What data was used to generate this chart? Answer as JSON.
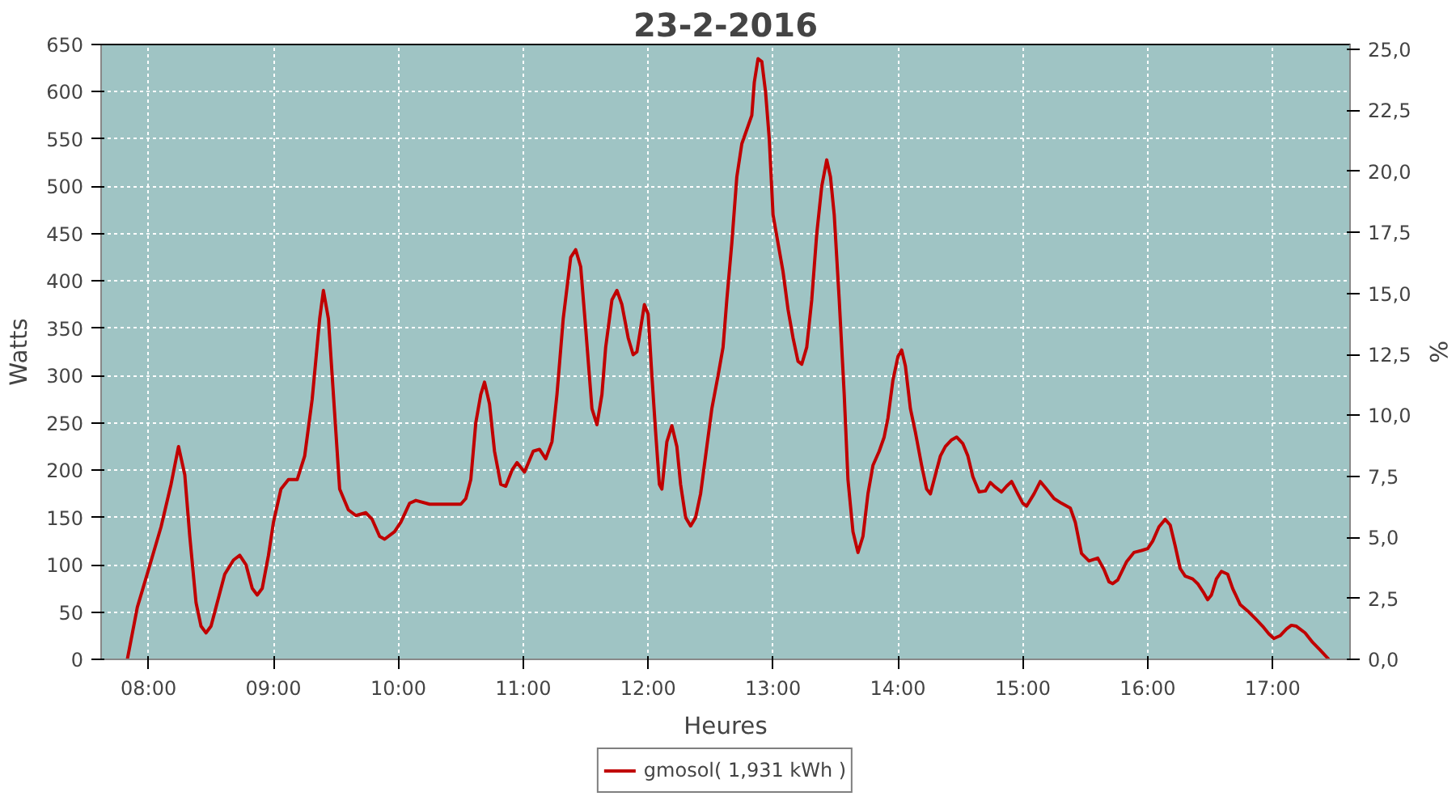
{
  "chart_data": {
    "type": "line",
    "title": "23-2-2016",
    "xlabel": "Heures",
    "ylabel": "Watts",
    "y2label": "%",
    "xlim": [
      7.62,
      17.62
    ],
    "xticks": [
      {
        "value": 8,
        "label": "08:00"
      },
      {
        "value": 9,
        "label": "09:00"
      },
      {
        "value": 10,
        "label": "10:00"
      },
      {
        "value": 11,
        "label": "11:00"
      },
      {
        "value": 12,
        "label": "12:00"
      },
      {
        "value": 13,
        "label": "13:00"
      },
      {
        "value": 14,
        "label": "14:00"
      },
      {
        "value": 15,
        "label": "15:00"
      },
      {
        "value": 16,
        "label": "16:00"
      },
      {
        "value": 17,
        "label": "17:00"
      }
    ],
    "ylim": [
      0,
      650
    ],
    "yticks": [
      0,
      50,
      100,
      150,
      200,
      250,
      300,
      350,
      400,
      450,
      500,
      550,
      600,
      650
    ],
    "y2lim": [
      0,
      25.2
    ],
    "y2ticks": [
      {
        "value": 0,
        "label": "0,0"
      },
      {
        "value": 2.5,
        "label": "2,5"
      },
      {
        "value": 5,
        "label": "5,0"
      },
      {
        "value": 7.5,
        "label": "7,5"
      },
      {
        "value": 10,
        "label": "10,0"
      },
      {
        "value": 12.5,
        "label": "12,5"
      },
      {
        "value": 15,
        "label": "15,0"
      },
      {
        "value": 17.5,
        "label": "17,5"
      },
      {
        "value": 20,
        "label": "20,0"
      },
      {
        "value": 22.5,
        "label": "22,5"
      },
      {
        "value": 25,
        "label": "25,0"
      }
    ],
    "grid": true,
    "legend": "bottom",
    "line_style": "solid",
    "x": [
      7.83,
      7.91,
      8.0,
      8.1,
      8.18,
      8.24,
      8.29,
      8.33,
      8.38,
      8.42,
      8.46,
      8.5,
      8.55,
      8.61,
      8.68,
      8.73,
      8.78,
      8.83,
      8.87,
      8.91,
      8.96,
      9.0,
      9.06,
      9.12,
      9.19,
      9.25,
      9.31,
      9.37,
      9.4,
      9.44,
      9.49,
      9.53,
      9.6,
      9.66,
      9.74,
      9.79,
      9.85,
      9.89,
      9.97,
      10.02,
      10.09,
      10.14,
      10.25,
      10.4,
      10.5,
      10.54,
      10.58,
      10.62,
      10.66,
      10.69,
      10.73,
      10.77,
      10.82,
      10.86,
      10.91,
      10.95,
      11.01,
      11.08,
      11.13,
      11.18,
      11.23,
      11.27,
      11.32,
      11.38,
      11.42,
      11.46,
      11.5,
      11.55,
      11.59,
      11.63,
      11.66,
      11.71,
      11.75,
      11.79,
      11.84,
      11.88,
      11.91,
      11.94,
      11.97,
      12.0,
      12.03,
      12.06,
      12.09,
      12.11,
      12.15,
      12.19,
      12.23,
      12.26,
      12.3,
      12.34,
      12.38,
      12.42,
      12.46,
      12.51,
      12.56,
      12.6,
      12.63,
      12.67,
      12.71,
      12.75,
      12.79,
      12.83,
      12.85,
      12.88,
      12.91,
      12.94,
      12.97,
      13.0,
      13.04,
      13.08,
      13.12,
      13.16,
      13.2,
      13.23,
      13.27,
      13.31,
      13.35,
      13.39,
      13.43,
      13.46,
      13.49,
      13.53,
      13.57,
      13.6,
      13.64,
      13.68,
      13.72,
      13.76,
      13.8,
      13.85,
      13.89,
      13.92,
      13.96,
      14.0,
      14.03,
      14.06,
      14.1,
      14.14,
      14.19,
      14.23,
      14.26,
      14.29,
      14.34,
      14.38,
      14.43,
      14.47,
      14.52,
      14.56,
      14.6,
      14.65,
      14.7,
      14.74,
      14.78,
      14.83,
      14.87,
      14.91,
      14.96,
      15.0,
      15.03,
      15.09,
      15.14,
      15.19,
      15.25,
      15.31,
      15.38,
      15.42,
      15.47,
      15.53,
      15.6,
      15.65,
      15.69,
      15.72,
      15.76,
      15.83,
      15.89,
      15.95,
      16.0,
      16.04,
      16.09,
      16.14,
      16.18,
      16.22,
      16.26,
      16.3,
      16.36,
      16.4,
      16.45,
      16.48,
      16.51,
      16.55,
      16.59,
      16.64,
      16.68,
      16.74,
      16.81,
      16.87,
      16.92,
      16.97,
      17.01,
      17.06,
      17.11,
      17.15,
      17.19,
      17.26,
      17.32,
      17.38,
      17.45
    ],
    "series": [
      {
        "name": "gmosol( 1,931 kWh )",
        "color": "#c00000",
        "values": [
          0,
          55,
          95,
          140,
          185,
          225,
          195,
          130,
          60,
          35,
          28,
          35,
          60,
          90,
          105,
          110,
          100,
          75,
          68,
          75,
          110,
          145,
          180,
          190,
          190,
          215,
          275,
          360,
          390,
          360,
          260,
          180,
          158,
          152,
          155,
          148,
          130,
          127,
          135,
          145,
          165,
          168,
          164,
          164,
          164,
          170,
          190,
          250,
          280,
          293,
          270,
          220,
          185,
          183,
          200,
          208,
          198,
          220,
          222,
          212,
          230,
          280,
          360,
          425,
          433,
          415,
          350,
          265,
          248,
          280,
          330,
          380,
          390,
          375,
          340,
          322,
          325,
          350,
          375,
          365,
          300,
          240,
          185,
          180,
          230,
          247,
          225,
          185,
          150,
          141,
          150,
          175,
          215,
          265,
          300,
          330,
          380,
          440,
          510,
          545,
          560,
          575,
          610,
          635,
          632,
          600,
          550,
          470,
          440,
          410,
          370,
          340,
          315,
          312,
          330,
          380,
          450,
          500,
          528,
          510,
          470,
          380,
          280,
          190,
          135,
          113,
          130,
          175,
          205,
          220,
          235,
          255,
          295,
          320,
          327,
          310,
          265,
          240,
          205,
          180,
          175,
          190,
          215,
          225,
          232,
          235,
          228,
          215,
          193,
          177,
          178,
          187,
          182,
          177,
          183,
          188,
          175,
          165,
          162,
          175,
          188,
          180,
          170,
          165,
          160,
          145,
          112,
          104,
          107,
          95,
          82,
          80,
          84,
          103,
          113,
          115,
          117,
          125,
          140,
          148,
          142,
          120,
          96,
          88,
          85,
          80,
          70,
          63,
          68,
          85,
          93,
          90,
          75,
          58,
          50,
          42,
          35,
          27,
          22,
          25,
          32,
          36,
          35,
          28,
          18,
          10,
          0
        ]
      }
    ]
  }
}
